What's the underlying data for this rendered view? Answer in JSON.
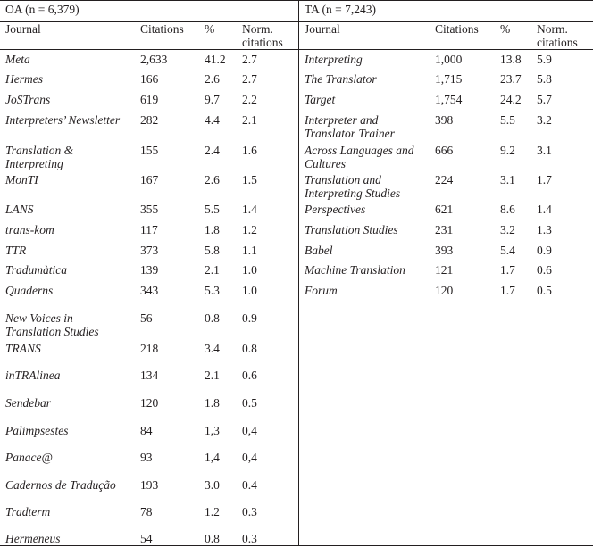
{
  "oa": {
    "title": "OA (n = 6,379)",
    "headers": {
      "journal": "Journal",
      "citations": "Citations",
      "pct": "%",
      "norm_line1": "Norm.",
      "norm_line2": "citations"
    },
    "rows": [
      {
        "journal": [
          "Meta"
        ],
        "citations": "2,633",
        "pct": "41.2",
        "norm": "2.7"
      },
      {
        "journal": [
          "Hermes"
        ],
        "citations": "166",
        "pct": "2.6",
        "norm": "2.7"
      },
      {
        "journal": [
          "JoSTrans"
        ],
        "citations": "619",
        "pct": "9.7",
        "norm": "2.2"
      },
      {
        "journal": [
          "Interpreters’ Newsletter"
        ],
        "citations": "282",
        "pct": "4.4",
        "norm": "2.1"
      },
      {
        "journal": [
          "Translation &",
          "Interpreting"
        ],
        "citations": "155",
        "pct": "2.4",
        "norm": "1.6"
      },
      {
        "journal": [
          "MonTI"
        ],
        "citations": "167",
        "pct": "2.6",
        "norm": "1.5"
      },
      {
        "journal": [
          "LANS"
        ],
        "citations": "355",
        "pct": "5.5",
        "norm": "1.4"
      },
      {
        "journal": [
          "trans-kom"
        ],
        "citations": "117",
        "pct": "1.8",
        "norm": "1.2"
      },
      {
        "journal": [
          "TTR"
        ],
        "citations": "373",
        "pct": "5.8",
        "norm": "1.1"
      },
      {
        "journal": [
          "Tradumàtica"
        ],
        "citations": "139",
        "pct": "2.1",
        "norm": "1.0"
      },
      {
        "journal": [
          "Quaderns"
        ],
        "citations": "343",
        "pct": "5.3",
        "norm": "1.0"
      },
      {
        "journal": [
          "New Voices in",
          "Translation Studies"
        ],
        "citations": "56",
        "pct": "0.8",
        "norm": "0.9"
      },
      {
        "journal": [
          "TRANS"
        ],
        "citations": "218",
        "pct": "3.4",
        "norm": "0.8"
      },
      {
        "journal": [
          "inTRAlinea"
        ],
        "citations": "134",
        "pct": "2.1",
        "norm": "0.6"
      },
      {
        "journal": [
          "Sendebar"
        ],
        "citations": "120",
        "pct": "1.8",
        "norm": "0.5"
      },
      {
        "journal": [
          "Palimpsestes"
        ],
        "citations": "84",
        "pct": "1,3",
        "norm": "0,4"
      },
      {
        "journal": [
          "Panace@"
        ],
        "citations": "93",
        "pct": "1,4",
        "norm": "0,4"
      },
      {
        "journal": [
          "Cadernos de Tradução"
        ],
        "citations": "193",
        "pct": "3.0",
        "norm": "0.4"
      },
      {
        "journal": [
          "Tradterm"
        ],
        "citations": "78",
        "pct": "1.2",
        "norm": "0.3"
      },
      {
        "journal": [
          "Hermeneus"
        ],
        "citations": "54",
        "pct": "0.8",
        "norm": "0.3"
      }
    ]
  },
  "ta": {
    "title": "TA (n = 7,243)",
    "headers": {
      "journal": "Journal",
      "citations": "Citations",
      "pct": "%",
      "norm_line1": "Norm.",
      "norm_line2": "citations"
    },
    "rows": [
      {
        "journal": [
          "Interpreting"
        ],
        "citations": "1,000",
        "pct": "13.8",
        "norm": "5.9"
      },
      {
        "journal": [
          "The Translator"
        ],
        "citations": "1,715",
        "pct": "23.7",
        "norm": "5.8"
      },
      {
        "journal": [
          "Target"
        ],
        "citations": "1,754",
        "pct": "24.2",
        "norm": "5.7"
      },
      {
        "journal": [
          "Interpreter and",
          "Translator Trainer"
        ],
        "citations": "398",
        "pct": "5.5",
        "norm": "3.2"
      },
      {
        "journal": [
          "Across Languages and",
          "Cultures"
        ],
        "citations": "666",
        "pct": "9.2",
        "norm": "3.1"
      },
      {
        "journal": [
          "Translation and",
          "Interpreting Studies"
        ],
        "citations": "224",
        "pct": "3.1",
        "norm": "1.7"
      },
      {
        "journal": [
          "Perspectives"
        ],
        "citations": "621",
        "pct": "8.6",
        "norm": "1.4"
      },
      {
        "journal": [
          "Translation Studies"
        ],
        "citations": "231",
        "pct": "3.2",
        "norm": "1.3"
      },
      {
        "journal": [
          "Babel"
        ],
        "citations": "393",
        "pct": "5.4",
        "norm": "0.9"
      },
      {
        "journal": [
          "Machine Translation"
        ],
        "citations": "121",
        "pct": "1.7",
        "norm": "0.6"
      },
      {
        "journal": [
          "Forum"
        ],
        "citations": "120",
        "pct": "1.7",
        "norm": "0.5"
      }
    ]
  }
}
